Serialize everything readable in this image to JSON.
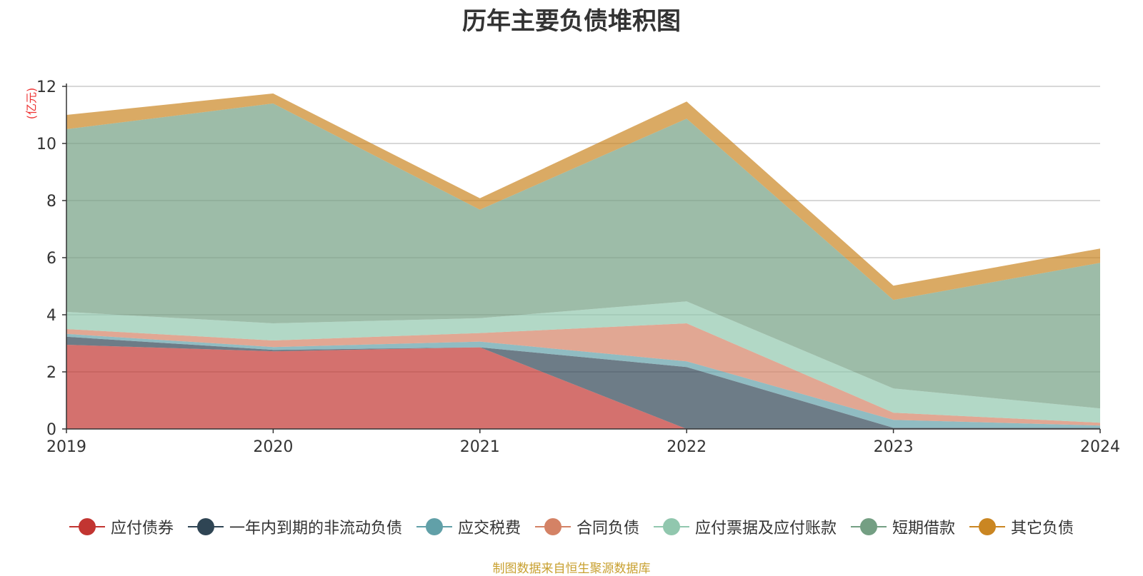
{
  "chart_data": {
    "type": "area",
    "stacked": true,
    "title": "历年主要负债堆积图",
    "unit_label": "(亿元)",
    "x": [
      "2019",
      "2020",
      "2021",
      "2022",
      "2023",
      "2024"
    ],
    "ylim": [
      0,
      12
    ],
    "yticks": [
      0,
      2,
      4,
      6,
      8,
      10,
      12
    ],
    "grid": true,
    "legend_position": "bottom",
    "series": [
      {
        "name": "应付债券",
        "color": "#c23531",
        "values": [
          2.95,
          2.72,
          2.86,
          0,
          0,
          0
        ]
      },
      {
        "name": "一年内到期的非流动负债",
        "color": "#2f4554",
        "values": [
          0.28,
          0.05,
          0.0,
          2.17,
          0.04,
          0.04
        ]
      },
      {
        "name": "应交税费",
        "color": "#61a0a8",
        "values": [
          0.1,
          0.1,
          0.2,
          0.2,
          0.28,
          0.08
        ]
      },
      {
        "name": "合同负债",
        "color": "#d48265",
        "values": [
          0.17,
          0.23,
          0.3,
          1.33,
          0.25,
          0.1
        ]
      },
      {
        "name": "应付票据及应付账款",
        "color": "#91c7ae",
        "values": [
          0.6,
          0.6,
          0.52,
          0.77,
          0.85,
          0.5
        ]
      },
      {
        "name": "短期借款",
        "color": "#749f83",
        "values": [
          6.4,
          7.7,
          3.8,
          6.4,
          3.1,
          5.1
        ]
      },
      {
        "name": "其它负债",
        "color": "#ca8622",
        "values": [
          0.5,
          0.35,
          0.4,
          0.6,
          0.5,
          0.5
        ]
      }
    ],
    "colors": {
      "unit_label": "#ee3333",
      "source": "#c8a030",
      "grid": "#cccccc",
      "axis": "#333333"
    }
  },
  "source_text": "制图数据来自恒生聚源数据库"
}
